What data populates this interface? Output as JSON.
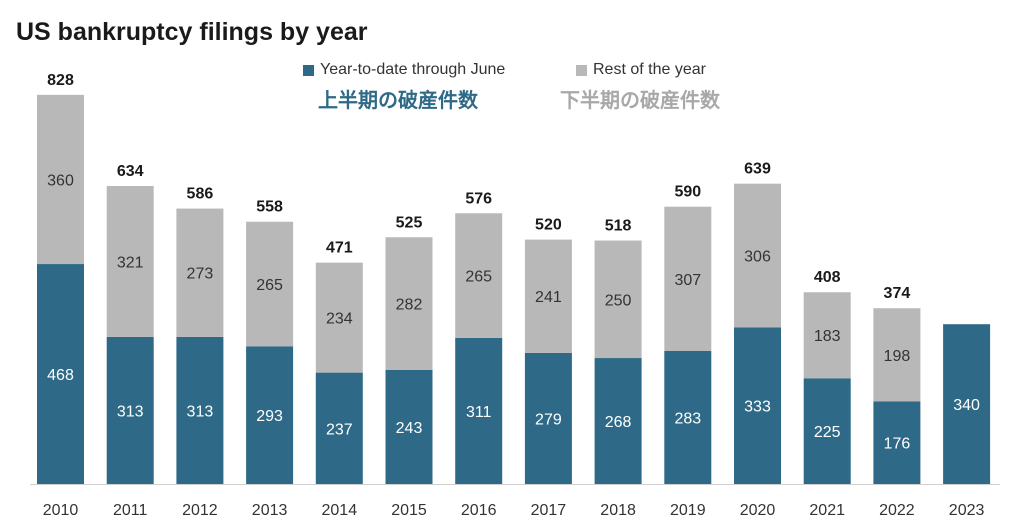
{
  "chart_data": {
    "type": "bar",
    "stacked": true,
    "title": "US bankruptcy filings by year",
    "categories": [
      "2010",
      "2011",
      "2012",
      "2013",
      "2014",
      "2015",
      "2016",
      "2017",
      "2018",
      "2019",
      "2020",
      "2021",
      "2022",
      "2023"
    ],
    "series": [
      {
        "name": "Year-to-date through June",
        "color": "#2e6a87",
        "values": [
          468,
          313,
          313,
          293,
          237,
          243,
          311,
          279,
          268,
          283,
          333,
          225,
          176,
          340
        ]
      },
      {
        "name": "Rest of the year",
        "color": "#b8b8b8",
        "values": [
          360,
          321,
          273,
          265,
          234,
          282,
          265,
          241,
          250,
          307,
          306,
          183,
          198,
          null
        ]
      }
    ],
    "totals": [
      828,
      634,
      586,
      558,
      471,
      525,
      576,
      520,
      518,
      590,
      639,
      408,
      374,
      null
    ],
    "ylim": [
      0,
      828
    ],
    "legend_position": "top-center"
  },
  "annotations": {
    "first_half": "上半期の破産件数",
    "second_half": "下半期の破産件数",
    "first_half_color": "#2e6a87",
    "second_half_color": "#a8a8a8"
  }
}
